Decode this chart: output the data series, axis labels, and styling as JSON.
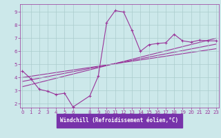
{
  "bg_color": "#cce8ea",
  "grid_color": "#aacccc",
  "line_color": "#993399",
  "spine_color": "#993399",
  "xlim": [
    -0.3,
    23.3
  ],
  "ylim": [
    1.7,
    9.6
  ],
  "xticks": [
    0,
    1,
    2,
    3,
    4,
    5,
    6,
    8,
    9,
    10,
    11,
    12,
    13,
    14,
    15,
    16,
    17,
    18,
    19,
    20,
    21,
    22,
    23
  ],
  "yticks": [
    2,
    3,
    4,
    5,
    6,
    7,
    8,
    9
  ],
  "xlabel": "Windchill (Refroidissement éolien,°C)",
  "xlabel_color": "#ffffff",
  "xlabel_bg": "#7733aa",
  "title_color": "#993399",
  "line1_x": [
    0,
    1,
    2,
    3,
    4,
    5,
    6,
    8,
    9,
    10,
    11,
    12,
    13,
    14,
    15,
    16,
    17,
    18,
    19,
    20,
    21,
    22,
    23
  ],
  "line1_y": [
    4.5,
    3.9,
    3.1,
    2.95,
    2.7,
    2.8,
    1.75,
    2.6,
    4.1,
    8.2,
    9.1,
    9.0,
    7.6,
    6.0,
    6.5,
    6.6,
    6.65,
    7.3,
    6.8,
    6.7,
    6.85,
    6.8,
    6.8
  ],
  "line2_x": [
    0,
    23
  ],
  "line2_y": [
    3.3,
    7.0
  ],
  "line3_x": [
    0,
    23
  ],
  "line3_y": [
    3.7,
    6.55
  ],
  "line4_x": [
    0,
    23
  ],
  "line4_y": [
    4.0,
    6.2
  ]
}
